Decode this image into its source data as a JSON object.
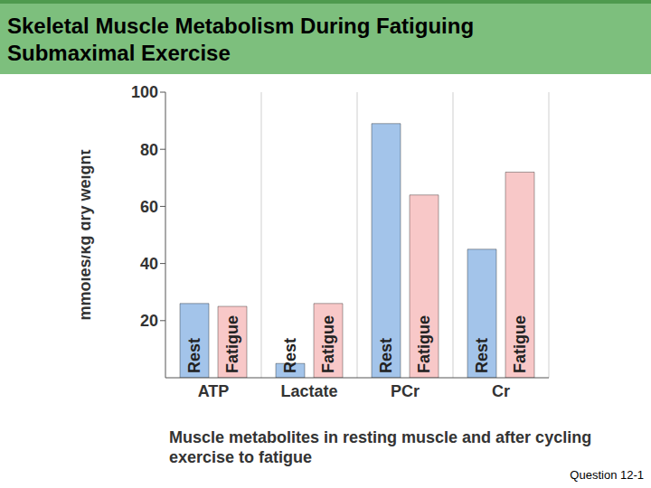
{
  "chart_data": {
    "type": "bar",
    "title": "Skeletal Muscle Metabolism During Fatiguing Submaximal Exercise",
    "y_label": "mmoles/kg dry weight",
    "caption": "Muscle metabolites in resting muscle and after cycling exercise to fatigue",
    "footer": "Question 12-1",
    "categories": [
      "ATP",
      "Lactate",
      "PCr",
      "Cr"
    ],
    "series": [
      {
        "name": "Rest",
        "color": "#a3c4ea",
        "values": [
          26,
          5,
          89,
          45
        ]
      },
      {
        "name": "Fatigue",
        "color": "#f8c8c8",
        "values": [
          25,
          26,
          64,
          72
        ]
      }
    ],
    "ylim": [
      0,
      100
    ],
    "yticks": [
      20,
      40,
      60,
      80,
      100
    ],
    "grid": true
  }
}
